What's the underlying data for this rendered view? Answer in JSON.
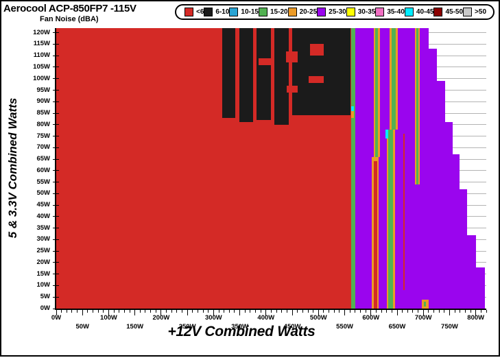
{
  "window": {
    "background": "#ffffff",
    "border_color": "#000000"
  },
  "chart_data": {
    "type": "heatmap",
    "title": "Aerocool ACP-850FP7 -115V",
    "subtitle": "Fan Noise (dBA)",
    "xlabel": "+12V Combined Watts",
    "ylabel": "5 & 3.3V Combined Watts",
    "xlim": [
      0,
      820
    ],
    "ylim": [
      0,
      122
    ],
    "grid": "horizontal gridlines every 5W, light gray, visible only where no data",
    "legend_position": "top",
    "palette": {
      "red": "#d42a26",
      "black": "#1b1b1b",
      "blue": "#29a4d4",
      "green": "#52b152",
      "orange": "#ec9b27",
      "purple": "#9a05ee",
      "yellow": "#ffff00",
      "pink": "#f06fc2",
      "cyan": "#00ecff",
      "darkred": "#8b0000",
      "gray": "#c9c9c9"
    },
    "legend": [
      {
        "label": "<6",
        "c": "red"
      },
      {
        "label": "6-10",
        "c": "black"
      },
      {
        "label": "10-15",
        "c": "blue"
      },
      {
        "label": "15-20",
        "c": "green"
      },
      {
        "label": "20-25",
        "c": "orange"
      },
      {
        "label": "25-30",
        "c": "purple"
      },
      {
        "label": "30-35",
        "c": "yellow"
      },
      {
        "label": "35-40",
        "c": "pink"
      },
      {
        "label": "40-45",
        "c": "cyan"
      },
      {
        "label": "45-50",
        "c": "darkred"
      },
      {
        "label": ">50",
        "c": "gray"
      }
    ],
    "x_axis": {
      "minor_step": 10,
      "major_step": 50,
      "row1_values": [
        0,
        100,
        200,
        300,
        400,
        500,
        600,
        700,
        800
      ],
      "row1_labels": [
        "0W",
        "100W",
        "200W",
        "300W",
        "400W",
        "500W",
        "600W",
        "700W",
        "800W"
      ],
      "row2_values": [
        50,
        150,
        250,
        350,
        450,
        550,
        650,
        750
      ],
      "row2_labels": [
        "50W",
        "150W",
        "250W",
        "350W",
        "450W",
        "550W",
        "650W",
        "750W"
      ]
    },
    "y_axis": {
      "values": [
        0,
        5,
        10,
        15,
        20,
        25,
        30,
        35,
        40,
        45,
        50,
        55,
        60,
        65,
        70,
        75,
        80,
        85,
        90,
        95,
        100,
        105,
        110,
        115,
        120
      ],
      "labels": [
        "0W",
        "5W",
        "10W",
        "15W",
        "20W",
        "25W",
        "30W",
        "35W",
        "40W",
        "45W",
        "50W",
        "55W",
        "60W",
        "65W",
        "70W",
        "75W",
        "80W",
        "85W",
        "90W",
        "95W",
        "100W",
        "105W",
        "110W",
        "115W",
        "120W"
      ]
    },
    "regions": [
      {
        "c": "red",
        "x": [
          0,
          562
        ],
        "y": [
          0,
          122
        ]
      },
      {
        "c": "black",
        "x": [
          316,
          342
        ],
        "y": [
          83,
          122
        ]
      },
      {
        "c": "black",
        "x": [
          349,
          375
        ],
        "y": [
          81,
          122
        ]
      },
      {
        "c": "black",
        "x": [
          382,
          410
        ],
        "y": [
          82,
          122
        ]
      },
      {
        "c": "black",
        "x": [
          416,
          444
        ],
        "y": [
          80,
          122
        ]
      },
      {
        "c": "black",
        "x": [
          450,
          561
        ],
        "y": [
          84,
          122
        ]
      },
      {
        "c": "red",
        "x": [
          438,
          460
        ],
        "y": [
          107,
          112
        ]
      },
      {
        "c": "red",
        "x": [
          386,
          412
        ],
        "y": [
          106,
          109
        ]
      },
      {
        "c": "red",
        "x": [
          484,
          510
        ],
        "y": [
          110,
          115
        ]
      },
      {
        "c": "red",
        "x": [
          481,
          510
        ],
        "y": [
          98,
          101
        ]
      },
      {
        "c": "red",
        "x": [
          440,
          460
        ],
        "y": [
          94,
          97
        ]
      },
      {
        "c": "green",
        "x": [
          562,
          570
        ],
        "y": [
          0,
          122
        ]
      },
      {
        "c": "cyan",
        "x": [
          562,
          567
        ],
        "y": [
          86,
          88
        ]
      },
      {
        "c": "orange",
        "x": [
          562,
          567
        ],
        "y": [
          83,
          86
        ]
      },
      {
        "c": "purple",
        "x": [
          570,
          710
        ],
        "y": [
          113,
          122
        ]
      },
      {
        "c": "purple",
        "x": [
          570,
          726
        ],
        "y": [
          99,
          113
        ]
      },
      {
        "c": "purple",
        "x": [
          570,
          741
        ],
        "y": [
          81,
          99
        ]
      },
      {
        "c": "purple",
        "x": [
          570,
          756
        ],
        "y": [
          67,
          81
        ]
      },
      {
        "c": "purple",
        "x": [
          570,
          769
        ],
        "y": [
          52,
          67
        ]
      },
      {
        "c": "purple",
        "x": [
          570,
          784
        ],
        "y": [
          32,
          52
        ]
      },
      {
        "c": "purple",
        "x": [
          570,
          801
        ],
        "y": [
          18,
          32
        ]
      },
      {
        "c": "purple",
        "x": [
          570,
          817
        ],
        "y": [
          0,
          18
        ]
      },
      {
        "c": "orange",
        "x": [
          605,
          617
        ],
        "y": [
          66,
          122
        ]
      },
      {
        "c": "green",
        "x": [
          608,
          614
        ],
        "y": [
          66,
          122
        ]
      },
      {
        "c": "orange",
        "x": [
          602,
          615
        ],
        "y": [
          0,
          66
        ]
      },
      {
        "c": "red",
        "x": [
          605,
          612
        ],
        "y": [
          0,
          64
        ]
      },
      {
        "c": "orange",
        "x": [
          635,
          651
        ],
        "y": [
          78,
          122
        ]
      },
      {
        "c": "green",
        "x": [
          639,
          647
        ],
        "y": [
          78,
          122
        ]
      },
      {
        "c": "orange",
        "x": [
          630,
          646
        ],
        "y": [
          0,
          78
        ]
      },
      {
        "c": "green",
        "x": [
          633,
          642
        ],
        "y": [
          0,
          78
        ]
      },
      {
        "c": "cyan",
        "x": [
          628,
          633
        ],
        "y": [
          74,
          78
        ]
      },
      {
        "c": "red",
        "x": [
          662,
          665
        ],
        "y": [
          8,
          76
        ]
      },
      {
        "c": "orange",
        "x": [
          684,
          693
        ],
        "y": [
          54,
          122
        ]
      },
      {
        "c": "green",
        "x": [
          686,
          690
        ],
        "y": [
          54,
          122
        ]
      },
      {
        "c": "orange",
        "x": [
          697,
          710
        ],
        "y": [
          0,
          4
        ]
      },
      {
        "c": "green",
        "x": [
          701,
          705
        ],
        "y": [
          1,
          3
        ]
      }
    ]
  }
}
